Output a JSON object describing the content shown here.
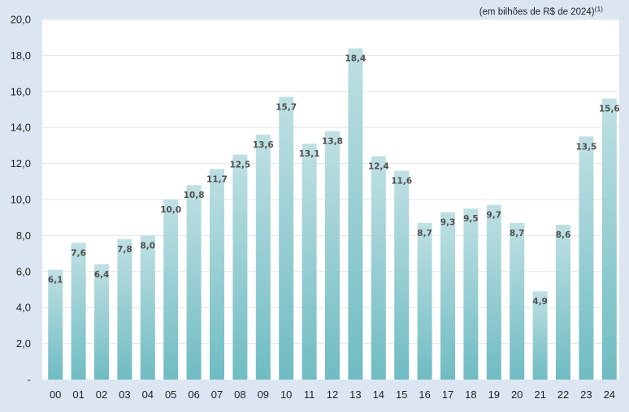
{
  "chart_data": {
    "type": "bar",
    "title": "",
    "unit_note": "(em bilhões de R$ de 2024)",
    "unit_note_sup": "(1)",
    "xlabel": "",
    "ylabel": "",
    "categories": [
      "00",
      "01",
      "02",
      "03",
      "04",
      "05",
      "06",
      "07",
      "08",
      "09",
      "10",
      "11",
      "12",
      "13",
      "14",
      "15",
      "16",
      "17",
      "18",
      "19",
      "20",
      "21",
      "22",
      "23",
      "24"
    ],
    "values": [
      6.1,
      7.6,
      6.4,
      7.8,
      8.0,
      10.0,
      10.8,
      11.7,
      12.5,
      13.6,
      15.7,
      13.1,
      13.8,
      18.4,
      12.4,
      11.6,
      8.7,
      9.3,
      9.5,
      9.7,
      8.7,
      4.9,
      8.6,
      13.5,
      15.6
    ],
    "value_labels": [
      "6,1",
      "7,6",
      "6,4",
      "7,8",
      "8,0",
      "10,0",
      "10,8",
      "11,7",
      "12,5",
      "13,6",
      "15,7",
      "13,1",
      "13,8",
      "18,4",
      "12,4",
      "11,6",
      "8,7",
      "9,3",
      "9,5",
      "9,7",
      "8,7",
      "4,9",
      "8,6",
      "13,5",
      "15,6"
    ],
    "ylim": [
      0,
      20
    ],
    "yticks": [
      0,
      2,
      4,
      6,
      8,
      10,
      12,
      14,
      16,
      18,
      20
    ],
    "ytick_labels": [
      "-",
      "2,0",
      "4,0",
      "6,0",
      "8,0",
      "10,0",
      "12,0",
      "14,0",
      "16,0",
      "18,0",
      "20,0"
    ],
    "grid": true,
    "legend": "none",
    "colors": {
      "page_background": "#dce6f2",
      "plot_background": "#ffffff",
      "bar_top": "#bfe0e3",
      "bar_bottom": "#6fbcc2",
      "grid": "#e6e6e6",
      "label": "#505050"
    }
  }
}
